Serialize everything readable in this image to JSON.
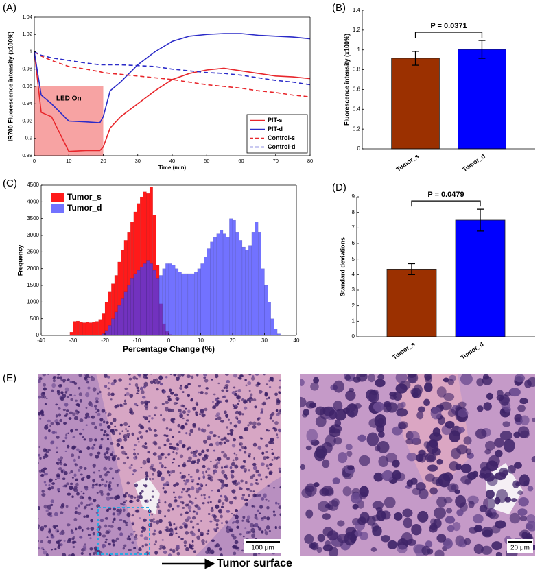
{
  "chart_data": [
    {
      "panel": "(A)",
      "type": "line",
      "x_label": "Time (min)",
      "y_label": "IR700 Fluorescence intensity (x100%)",
      "x": [
        0,
        2,
        5,
        10,
        15,
        19,
        20,
        22,
        25,
        30,
        35,
        40,
        45,
        50,
        55,
        60,
        65,
        70,
        75,
        80
      ],
      "series": [
        {
          "name": "PIT-s",
          "color": "#e8262b",
          "linestyle": "solid",
          "values": [
            1,
            0.93,
            0.925,
            0.885,
            0.886,
            0.886,
            0.89,
            0.912,
            0.925,
            0.94,
            0.955,
            0.968,
            0.975,
            0.979,
            0.981,
            0.978,
            0.975,
            0.972,
            0.971,
            0.969
          ]
        },
        {
          "name": "PIT-d",
          "color": "#2b2bc8",
          "linestyle": "solid",
          "values": [
            1,
            0.95,
            0.94,
            0.92,
            0.919,
            0.918,
            0.925,
            0.955,
            0.965,
            0.985,
            1.0,
            1.012,
            1.018,
            1.02,
            1.021,
            1.021,
            1.019,
            1.018,
            1.017,
            1.015
          ]
        },
        {
          "name": "Control-s",
          "color": "#e8262b",
          "linestyle": "dashed",
          "values": [
            1,
            0.995,
            0.99,
            0.983,
            0.98,
            0.977,
            0.976,
            0.975,
            0.974,
            0.972,
            0.97,
            0.968,
            0.965,
            0.962,
            0.96,
            0.958,
            0.955,
            0.953,
            0.95,
            0.948
          ]
        },
        {
          "name": "Control-d",
          "color": "#2b2bc8",
          "linestyle": "dashed",
          "values": [
            1,
            0.996,
            0.993,
            0.99,
            0.987,
            0.985,
            0.985,
            0.985,
            0.985,
            0.984,
            0.983,
            0.98,
            0.978,
            0.976,
            0.975,
            0.973,
            0.97,
            0.967,
            0.965,
            0.962
          ]
        }
      ],
      "xlim": [
        0,
        80
      ],
      "xticks": [
        0,
        10,
        20,
        30,
        40,
        50,
        60,
        70,
        80
      ],
      "ylim": [
        0.88,
        1.04
      ],
      "yticks": [
        0.88,
        0.9,
        0.92,
        0.94,
        0.96,
        0.98,
        1,
        1.02,
        1.04
      ],
      "annotations": [
        {
          "text": "LED On",
          "x": [
            0,
            20
          ],
          "y": [
            0.88,
            0.96
          ],
          "color": "#f7a3a3"
        }
      ],
      "legend": "lower right"
    },
    {
      "panel": "(B)",
      "type": "bar",
      "y_label": "Fluorescence intensity (x100%)",
      "categories": [
        "Tumor_s",
        "Tumor_d"
      ],
      "values": [
        0.915,
        1.005
      ],
      "errors": [
        0.07,
        0.09
      ],
      "colors": [
        "#9b3000",
        "#0000ff"
      ],
      "p_value": "P = 0.0371",
      "ylim": [
        0,
        1.4
      ],
      "yticks": [
        0,
        0.2,
        0.4,
        0.6,
        0.8,
        1,
        1.2,
        1.4
      ]
    },
    {
      "panel": "(C)",
      "type": "histogram",
      "x_label": "Percentage Change (%)",
      "y_label": "Frequency",
      "series": [
        {
          "name": "Tumor_s",
          "color": "#ff1a1a",
          "bins": [
            -31,
            -30,
            -29,
            -28,
            -27,
            -26,
            -25,
            -24,
            -23,
            -22,
            -21,
            -20,
            -19,
            -18,
            -17,
            -16,
            -15,
            -14,
            -13,
            -12,
            -11,
            -10,
            -9,
            -8,
            -7,
            -6,
            -5,
            -4,
            -3,
            -2,
            -1,
            0,
            1
          ],
          "values": [
            100,
            420,
            430,
            400,
            380,
            390,
            380,
            400,
            420,
            480,
            650,
            1000,
            1300,
            1550,
            1800,
            2200,
            2550,
            2850,
            3100,
            3400,
            3700,
            3950,
            4150,
            4300,
            4250,
            4450,
            3600,
            2100,
            950,
            350,
            120,
            30
          ]
        },
        {
          "name": "Tumor_d",
          "color": "#3c3cff",
          "bins": [
            -21,
            -20,
            -19,
            -18,
            -17,
            -16,
            -15,
            -14,
            -13,
            -12,
            -11,
            -10,
            -9,
            -8,
            -7,
            -6,
            -5,
            -4,
            -3,
            -2,
            -1,
            0,
            1,
            2,
            3,
            4,
            5,
            6,
            7,
            8,
            9,
            10,
            11,
            12,
            13,
            14,
            15,
            16,
            17,
            18,
            19,
            20,
            21,
            22,
            23,
            24,
            25,
            26,
            27,
            28,
            29,
            30,
            31,
            32,
            33,
            34,
            35
          ],
          "values": [
            50,
            150,
            300,
            500,
            700,
            900,
            1100,
            1300,
            1500,
            1700,
            1850,
            1950,
            2050,
            2150,
            2250,
            2150,
            1950,
            1700,
            1800,
            2000,
            2150,
            2150,
            2100,
            2000,
            1900,
            1850,
            1850,
            1850,
            1850,
            1900,
            2000,
            2150,
            2350,
            2600,
            2800,
            2950,
            3050,
            3150,
            3050,
            2950,
            3500,
            3450,
            3100,
            2850,
            2650,
            2550,
            2700,
            3100,
            3400,
            3100,
            2000,
            1500,
            1000,
            500,
            200,
            50
          ]
        }
      ],
      "xlim": [
        -40,
        40
      ],
      "xticks": [
        -40,
        -30,
        -20,
        -10,
        0,
        10,
        20,
        30,
        40
      ],
      "ylim": [
        0,
        4500
      ],
      "yticks": [
        0,
        500,
        1000,
        1500,
        2000,
        2500,
        3000,
        3500,
        4000,
        4500
      ],
      "legend": "upper left"
    },
    {
      "panel": "(D)",
      "type": "bar",
      "y_label": "Standard deviations",
      "categories": [
        "Tumor_s",
        "Tumor_d"
      ],
      "values": [
        4.35,
        7.5
      ],
      "errors": [
        0.35,
        0.7
      ],
      "colors": [
        "#9b3000",
        "#0000ff"
      ],
      "p_value": "P = 0.0479",
      "ylim": [
        0,
        9
      ],
      "yticks": [
        0,
        1,
        2,
        3,
        4,
        5,
        6,
        7,
        8,
        9
      ]
    }
  ],
  "histology": {
    "panel": "(E)",
    "scale_bars": [
      "100 μm",
      "20 μm"
    ],
    "arrow_label": "Tumor surface"
  }
}
